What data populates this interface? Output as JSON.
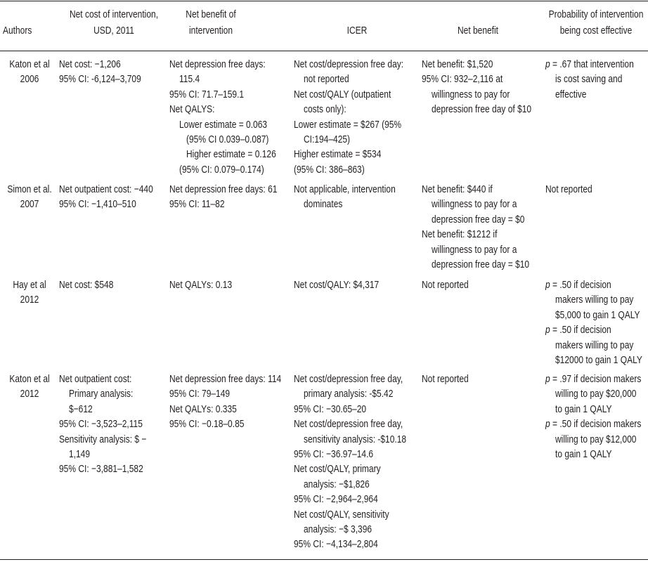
{
  "table": {
    "header": [
      [
        "Authors"
      ],
      [
        "Net cost of intervention,",
        "USD, 2011"
      ],
      [
        "Net benefit of",
        "intervention"
      ],
      [
        "ICER"
      ],
      [
        "Net benefit"
      ],
      [
        "Probability of intervention",
        "being cost effective"
      ]
    ],
    "rows": [
      [
        [
          "Katon et al",
          "2006"
        ],
        [
          "Net cost: −1,206",
          "95% CI: -6,124–3,709"
        ],
        [
          "Net depression free days:",
          "115.4",
          "95% CI: 71.7–159.1",
          "Net QALYS:",
          "Lower estimate = 0.063",
          "(95% CI 0.039–0.087)",
          "Higher estimate = 0.126",
          "(95% CI: 0.079–0.174)"
        ],
        [
          "Net cost/depression free day:",
          "not reported",
          "Net cost/QALY (outpatient",
          "costs only):",
          "Lower estimate = $267 (95%",
          "CI:194–425)",
          "Higher estimate = $534",
          "(95% CI: 386–863)"
        ],
        [
          "Net benefit: $1,520",
          "95% CI: 932–2,116 at",
          "willingness to pay for",
          "depression free day of $10"
        ],
        [
          "p = .67 that intervention",
          "is cost saving and",
          "effective"
        ]
      ],
      [
        [
          "Simon et al.",
          "2007"
        ],
        [
          "Net outpatient cost: −440",
          "95% CI: −1,410–510"
        ],
        [
          "Net depression free days: 61",
          "95% CI: 11–82"
        ],
        [
          "Not applicable, intervention",
          "dominates"
        ],
        [
          "Net benefit: $440 if",
          "willingness to pay for a",
          "depression free day = $0",
          "Net benefit: $1212 if",
          "willingness to pay for a",
          "depression free day = $10"
        ],
        [
          "Not reported"
        ]
      ],
      [
        [
          "Hay et al",
          "2012"
        ],
        [
          "Net cost: $548"
        ],
        [
          "Net QALYs: 0.13"
        ],
        [
          "Net cost/QALY: $4,317"
        ],
        [
          "Not reported"
        ],
        [
          "p = .50 if decision",
          "makers willing to pay",
          "$5,000 to gain 1 QALY",
          "p = .50 if decision",
          "makers willing to pay",
          "$12000 to gain 1 QALY"
        ]
      ],
      [
        [
          "Katon et al",
          "2012"
        ],
        [
          "Net outpatient cost:",
          "Primary analysis:",
          "$−612",
          "95% CI: −3,523–2,115",
          "Sensitivity analysis: $ −",
          "1,149",
          "95% CI: −3,881–1,582"
        ],
        [
          "Net depression free days: 114",
          "95% CI: 79–149",
          "Net QALYs: 0.335",
          "95% CI: −0.18–0.85"
        ],
        [
          "Net cost/depression free day,",
          "primary analysis: -$5.42",
          "95% CI: −30.65–20",
          "Net cost/depression free day,",
          "sensitivity analysis: -$10.18",
          "95% CI: −36.97–14.6",
          "Net cost/QALY, primary",
          "analysis: −$1,826",
          "95% CI: −2,964–2,964",
          "Net cost/QALY, sensitivity",
          "analysis: −$ 3,396",
          "95% CI: −4,134–2,804"
        ],
        [
          "Not reported"
        ],
        [
          "p = .97 if decision makers",
          "willing to pay $20,000",
          "to gain 1 QALY",
          "p = .50 if decision makers",
          "willing to pay $12,000",
          "to gain 1 QALY"
        ]
      ]
    ]
  }
}
